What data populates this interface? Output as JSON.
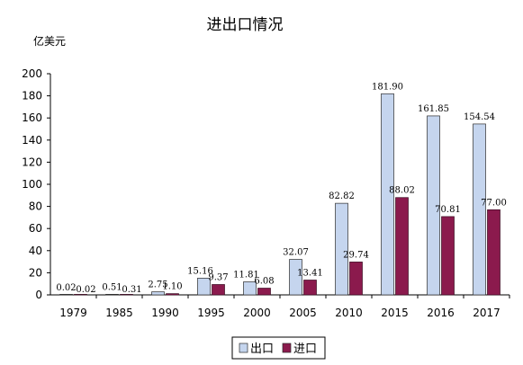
{
  "chart_data": {
    "type": "bar",
    "title": "进出口情况",
    "ylabel": "亿美元",
    "xlabel": "",
    "categories": [
      "1979",
      "1985",
      "1990",
      "1995",
      "2000",
      "2005",
      "2010",
      "2015",
      "2016",
      "2017"
    ],
    "series": [
      {
        "name": "出口",
        "color": "#c5d5ee",
        "values": [
          0.02,
          0.51,
          2.75,
          15.16,
          11.81,
          32.07,
          82.82,
          181.9,
          161.85,
          154.54
        ],
        "labels": [
          "0.02",
          "0.51",
          "2.75",
          "15.16",
          "11.81",
          "32.07",
          "82.82",
          "181.90",
          "161.85",
          "154.54"
        ]
      },
      {
        "name": "进口",
        "color": "#8b1a4d",
        "values": [
          0.02,
          0.31,
          1.1,
          9.37,
          6.08,
          13.41,
          29.74,
          88.02,
          70.81,
          77.0
        ],
        "labels": [
          "0.02",
          "0.31",
          "1.10",
          "9.37",
          "6.08",
          "13.41",
          "29.74",
          "88.02",
          "70.81",
          "77.00"
        ]
      }
    ],
    "ylim": [
      0,
      200
    ],
    "yticks": [
      "0",
      "20",
      "40",
      "60",
      "80",
      "100",
      "120",
      "140",
      "160",
      "180",
      "200"
    ],
    "grid": false,
    "legend_position": "bottom"
  }
}
